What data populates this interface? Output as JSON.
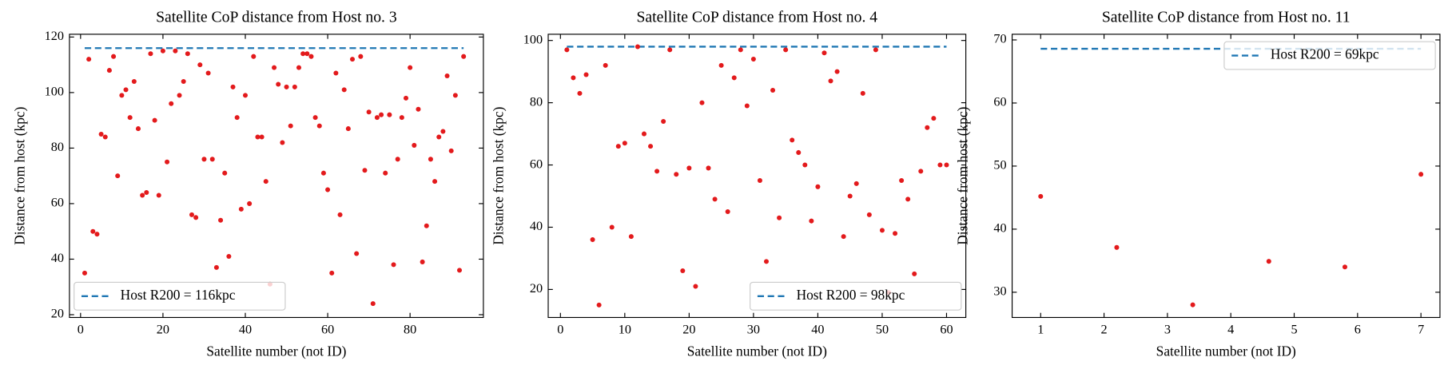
{
  "chart_data": [
    {
      "type": "scatter",
      "title": "Satellite CoP distance from Host no. 3",
      "xlabel": "Satellite number (not ID)",
      "ylabel": "Distance from host (kpc)",
      "x": [
        1,
        2,
        3,
        4,
        5,
        6,
        7,
        8,
        9,
        10,
        11,
        12,
        13,
        14,
        15,
        16,
        17,
        18,
        19,
        20,
        21,
        22,
        23,
        24,
        25,
        26,
        27,
        28,
        29,
        30,
        31,
        32,
        33,
        34,
        35,
        36,
        37,
        38,
        39,
        40,
        41,
        42,
        43,
        44,
        45,
        46,
        47,
        48,
        49,
        50,
        51,
        52,
        53,
        54,
        55,
        56,
        57,
        58,
        59,
        60,
        61,
        62,
        63,
        64,
        65,
        66,
        67,
        68,
        69,
        70,
        71,
        72,
        73,
        74,
        75,
        76,
        77,
        78,
        79,
        80,
        81,
        82,
        83,
        84,
        85,
        86,
        87,
        88,
        89,
        90,
        91,
        92,
        93
      ],
      "values": [
        35,
        112,
        50,
        49,
        85,
        84,
        108,
        113,
        70,
        99,
        101,
        91,
        104,
        87,
        63,
        64,
        114,
        90,
        63,
        115,
        75,
        96,
        115,
        99,
        104,
        114,
        56,
        55,
        110,
        76,
        107,
        76,
        37,
        54,
        71,
        41,
        102,
        91,
        58,
        99,
        60,
        113,
        84,
        84,
        68,
        31,
        109,
        103,
        82,
        102,
        88,
        102,
        109,
        114,
        114,
        113,
        91,
        88,
        71,
        65,
        35,
        107,
        56,
        101,
        87,
        112,
        42,
        113,
        72,
        93,
        24,
        91,
        92,
        71,
        92,
        38,
        76,
        91,
        98,
        109,
        81,
        94,
        39,
        52,
        76,
        68,
        84,
        86,
        106,
        79,
        99,
        36,
        113
      ],
      "color": "#e31a1c",
      "xlim": [
        -2.7,
        97.8
      ],
      "ylim": [
        19,
        121
      ],
      "xticks": [
        0,
        20,
        40,
        60,
        80
      ],
      "yticks": [
        20,
        40,
        60,
        80,
        100,
        120
      ],
      "hline": {
        "label": "Host R200 = 116kpc",
        "value": 116,
        "color": "#1f77b4"
      },
      "legend": "lower left"
    },
    {
      "type": "scatter",
      "title": "Satellite CoP distance from Host no. 4",
      "xlabel": "Satellite number (not ID)",
      "ylabel": "Distance from host (kpc)",
      "x": [
        1,
        2,
        3,
        4,
        5,
        6,
        7,
        8,
        9,
        10,
        11,
        12,
        13,
        14,
        15,
        16,
        17,
        18,
        19,
        20,
        21,
        22,
        23,
        24,
        25,
        26,
        27,
        28,
        29,
        30,
        31,
        32,
        33,
        34,
        35,
        36,
        37,
        38,
        39,
        40,
        41,
        42,
        43,
        44,
        45,
        46,
        47,
        48,
        49,
        50,
        51,
        52,
        53,
        54,
        55,
        56,
        57,
        58,
        59,
        60
      ],
      "values": [
        97,
        88,
        83,
        89,
        36,
        15,
        92,
        40,
        66,
        67,
        37,
        98,
        70,
        66,
        58,
        74,
        97,
        57,
        26,
        59,
        21,
        80,
        59,
        49,
        92,
        45,
        88,
        97,
        79,
        94,
        55,
        29,
        84,
        43,
        97,
        68,
        64,
        60,
        42,
        53,
        96,
        87,
        90,
        37,
        50,
        54,
        83,
        44,
        97,
        39,
        19,
        38,
        55,
        49,
        25,
        58,
        72,
        75,
        60,
        60
      ],
      "color": "#e31a1c",
      "xlim": [
        -1.9,
        63
      ],
      "ylim": [
        11,
        102
      ],
      "xticks": [
        0,
        10,
        20,
        30,
        40,
        50,
        60
      ],
      "yticks": [
        20,
        40,
        60,
        80,
        100
      ],
      "hline": {
        "label": "Host R200 = 98kpc",
        "value": 98,
        "color": "#1f77b4"
      },
      "legend": "lower right"
    },
    {
      "type": "scatter",
      "title": "Satellite CoP distance from Host no. 11",
      "xlabel": "Satellite number (not ID)",
      "ylabel": "Distance from host (kpc)",
      "x": [
        1,
        2.2,
        3.4,
        4.6,
        5.8,
        7
      ],
      "values": [
        45.2,
        37.1,
        28,
        34.9,
        34,
        48.7
      ],
      "color": "#e31a1c",
      "xlim": [
        0.55,
        7.3
      ],
      "ylim": [
        26,
        70.9
      ],
      "xticks": [
        1,
        2,
        3,
        4,
        5,
        6,
        7
      ],
      "yticks": [
        30,
        40,
        50,
        60,
        70
      ],
      "hline": {
        "label": "Host R200 = 69kpc",
        "value": 68.6,
        "color": "#1f77b4"
      },
      "legend": "upper right"
    }
  ]
}
